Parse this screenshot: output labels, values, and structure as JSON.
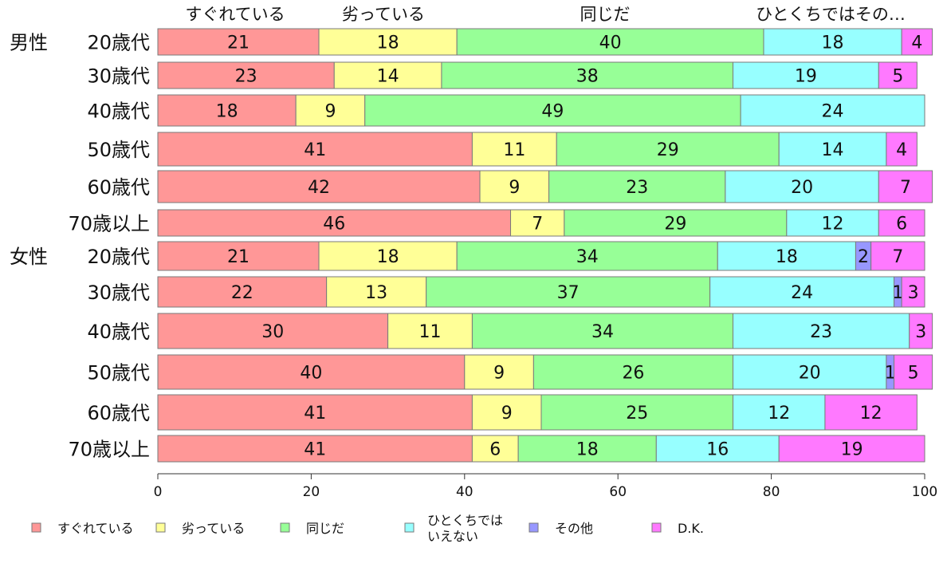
{
  "chart_data": {
    "type": "bar",
    "orientation": "horizontal",
    "stacked": true,
    "xlim": [
      0,
      100
    ],
    "xticks": [
      0,
      20,
      40,
      60,
      80,
      100
    ],
    "grid": false,
    "legend_position": "bottom",
    "top_labels": [
      "すぐれている",
      "劣っている",
      "同じだ",
      "ひとくちではその…"
    ],
    "groups": [
      {
        "label": "男性",
        "start_index": 0
      },
      {
        "label": "女性",
        "start_index": 6
      }
    ],
    "categories": [
      "20歳代",
      "30歳代",
      "40歳代",
      "50歳代",
      "60歳代",
      "70歳以上",
      "20歳代",
      "30歳代",
      "40歳代",
      "50歳代",
      "60歳代",
      "70歳以上"
    ],
    "series": [
      {
        "name": "すぐれている",
        "color": "#ff9797",
        "values": [
          21,
          23,
          18,
          41,
          42,
          46,
          21,
          22,
          30,
          40,
          41,
          41
        ]
      },
      {
        "name": "劣っている",
        "color": "#ffff97",
        "values": [
          18,
          14,
          9,
          11,
          9,
          7,
          18,
          13,
          11,
          9,
          9,
          6
        ]
      },
      {
        "name": "同じだ",
        "color": "#97ff97",
        "values": [
          40,
          38,
          49,
          29,
          23,
          29,
          34,
          37,
          34,
          26,
          25,
          18
        ]
      },
      {
        "name": "ひとくちでは\nいえない",
        "color": "#97ffff",
        "values": [
          18,
          19,
          24,
          14,
          20,
          12,
          18,
          24,
          23,
          20,
          12,
          16
        ]
      },
      {
        "name": "その他",
        "color": "#9797ff",
        "values": [
          0,
          0,
          0,
          0,
          0,
          0,
          2,
          1,
          0,
          1,
          0,
          0
        ]
      },
      {
        "name": "D.K.",
        "color": "#ff79ff",
        "values": [
          4,
          5,
          0,
          4,
          7,
          6,
          7,
          3,
          3,
          5,
          12,
          19
        ]
      }
    ]
  }
}
